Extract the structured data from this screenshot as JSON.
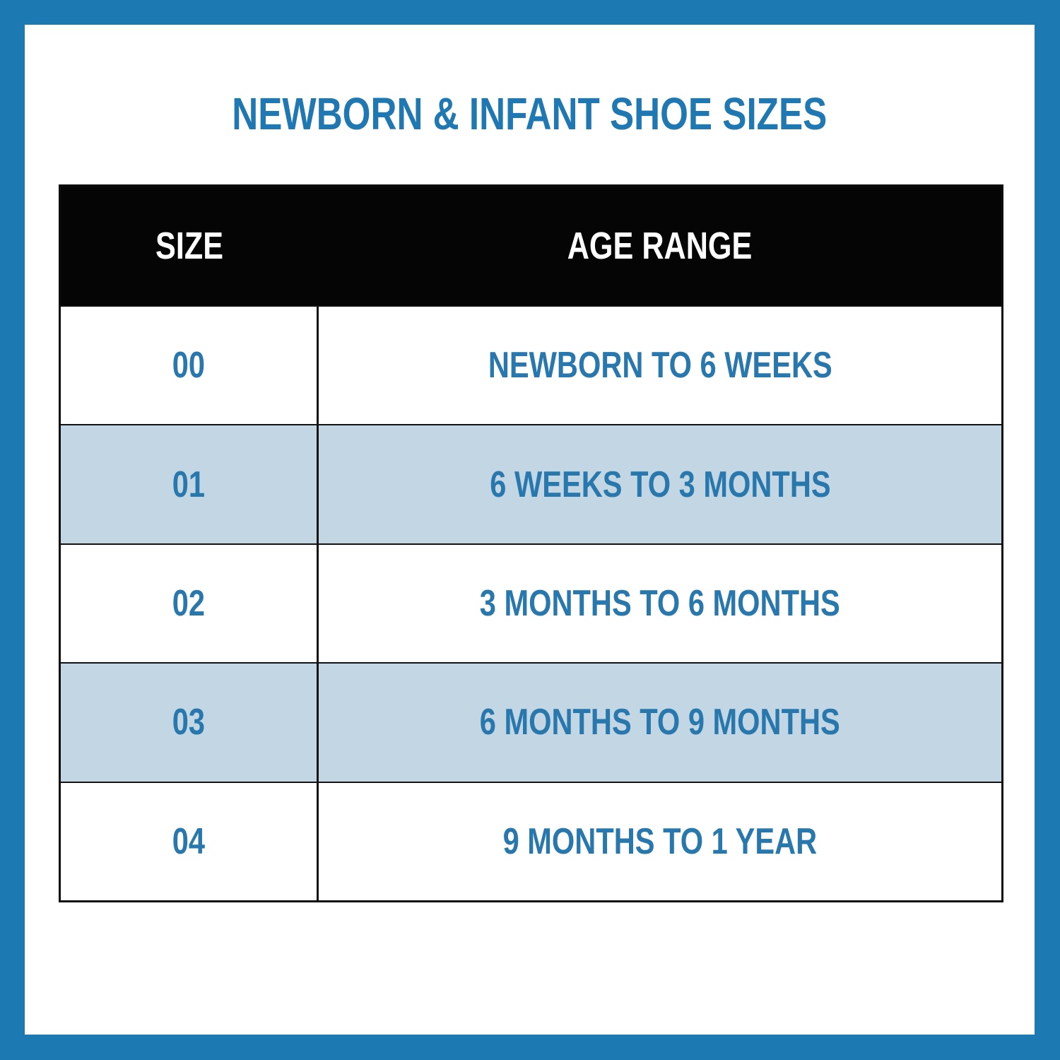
{
  "page_title": "NEWBORN & INFANT SHOE SIZES",
  "colors": {
    "frame_blue": "#1d79b2",
    "title_blue": "#1f78b2",
    "cell_text_blue": "#2878ae",
    "alt_row_blue": "#c3d6e3",
    "header_bar_black": "#050505",
    "header_text_white": "#ffffff"
  },
  "chart_data": {
    "type": "table",
    "title": "NEWBORN & INFANT SHOE SIZES",
    "columns": [
      "SIZE",
      "AGE RANGE"
    ],
    "rows": [
      [
        "00",
        "NEWBORN TO 6 WEEKS"
      ],
      [
        "01",
        "6 WEEKS TO 3 MONTHS"
      ],
      [
        "02",
        "3 MONTHS TO 6 MONTHS"
      ],
      [
        "03",
        "6 MONTHS TO 9 MONTHS"
      ],
      [
        "04",
        "9 MONTHS TO 1 YEAR"
      ]
    ],
    "layout_hints": {
      "alternating_row_shading": "rows 01 and 03 shaded light blue",
      "header_style": "black bar, white text",
      "column_divider": "vertical rule between SIZE and AGE RANGE in body only"
    }
  }
}
